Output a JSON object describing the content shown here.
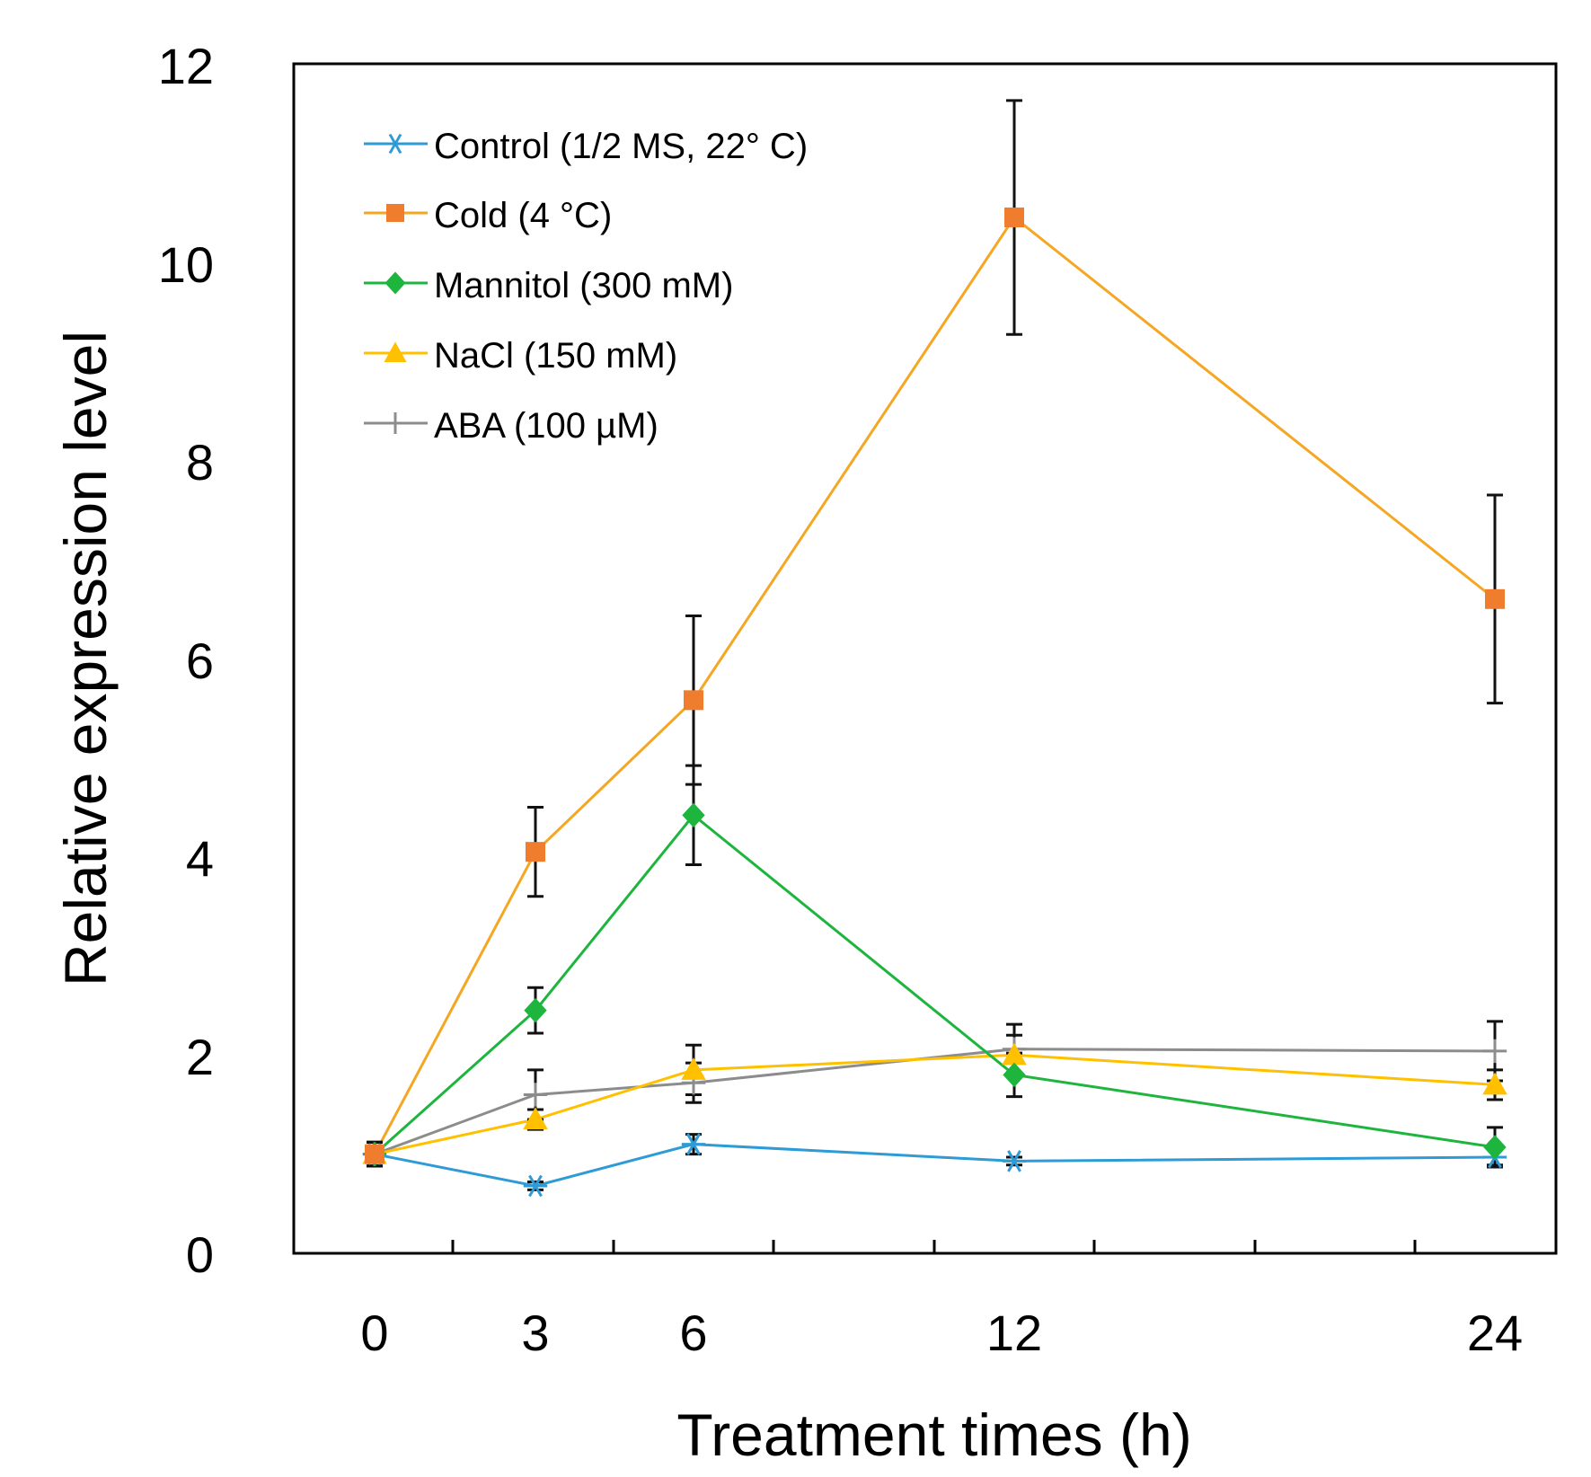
{
  "chart_data": {
    "type": "line",
    "title": "",
    "xlabel": "Treatment times (h)",
    "ylabel": "Relative expression level",
    "ylim": [
      0,
      12
    ],
    "yticks": [
      "0",
      "2",
      "4",
      "6",
      "8",
      "10",
      "12"
    ],
    "categories": [
      "0",
      "3",
      "6",
      "12",
      "24"
    ],
    "x": [
      0,
      3,
      6,
      12,
      24
    ],
    "legend_position": "top-left",
    "grid": false,
    "series": [
      {
        "name": "Control (1/2 MS, 22° C)",
        "color": "#2e9bd6",
        "marker": "asterisk",
        "values": [
          1.0,
          0.68,
          1.1,
          0.93,
          0.97
        ],
        "errors": [
          0.12,
          0.04,
          0.1,
          0.04,
          0.08
        ]
      },
      {
        "name": "Cold (4 °C)",
        "color": "#f07d2e",
        "line_color": "#f5a623",
        "marker": "square",
        "values": [
          1.0,
          4.05,
          5.58,
          10.45,
          6.6
        ],
        "errors": [
          0.12,
          0.45,
          0.85,
          1.18,
          1.05
        ]
      },
      {
        "name": "Mannitol (300 mM)",
        "color": "#1db53e",
        "marker": "diamond",
        "values": [
          1.0,
          2.45,
          4.42,
          1.8,
          1.07
        ],
        "errors": [
          0.12,
          0.23,
          0.5,
          0.22,
          0.2
        ]
      },
      {
        "name": "NaCl (150 mM)",
        "color": "#ffc000",
        "marker": "triangle",
        "values": [
          1.0,
          1.35,
          1.85,
          2.0,
          1.7
        ],
        "errors": [
          0.12,
          0.1,
          0.25,
          0.2,
          0.15
        ]
      },
      {
        "name": "ABA (100 µM)",
        "color": "#8c8c8c",
        "marker": "plus",
        "values": [
          1.0,
          1.6,
          1.72,
          2.06,
          2.04
        ],
        "errors": [
          0.12,
          0.25,
          0.2,
          0.25,
          0.3
        ]
      }
    ]
  }
}
